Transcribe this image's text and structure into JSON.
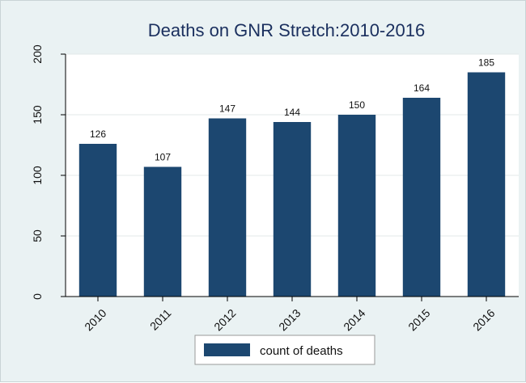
{
  "chart_data": {
    "type": "bar",
    "title": "Deaths on GNR Stretch:2010-2016",
    "xlabel": "",
    "ylabel": "",
    "categories": [
      "2010",
      "2011",
      "2012",
      "2013",
      "2014",
      "2015",
      "2016"
    ],
    "series": [
      {
        "name": "count of deaths",
        "values": [
          126,
          107,
          147,
          144,
          150,
          164,
          185
        ]
      }
    ],
    "data_labels": [
      "126",
      "107",
      "147",
      "144",
      "150",
      "164",
      "185"
    ],
    "ylim": [
      0,
      200
    ],
    "yticks": [
      0,
      50,
      100,
      150,
      200
    ],
    "ytick_labels": [
      "0",
      "50",
      "100",
      "150",
      "200"
    ],
    "grid": true,
    "legend_position": "bottom",
    "colors": {
      "bar": "#1c4770",
      "background": "#eaf2f3",
      "plot_area": "#ffffff",
      "title": "#1a2f5e"
    }
  }
}
